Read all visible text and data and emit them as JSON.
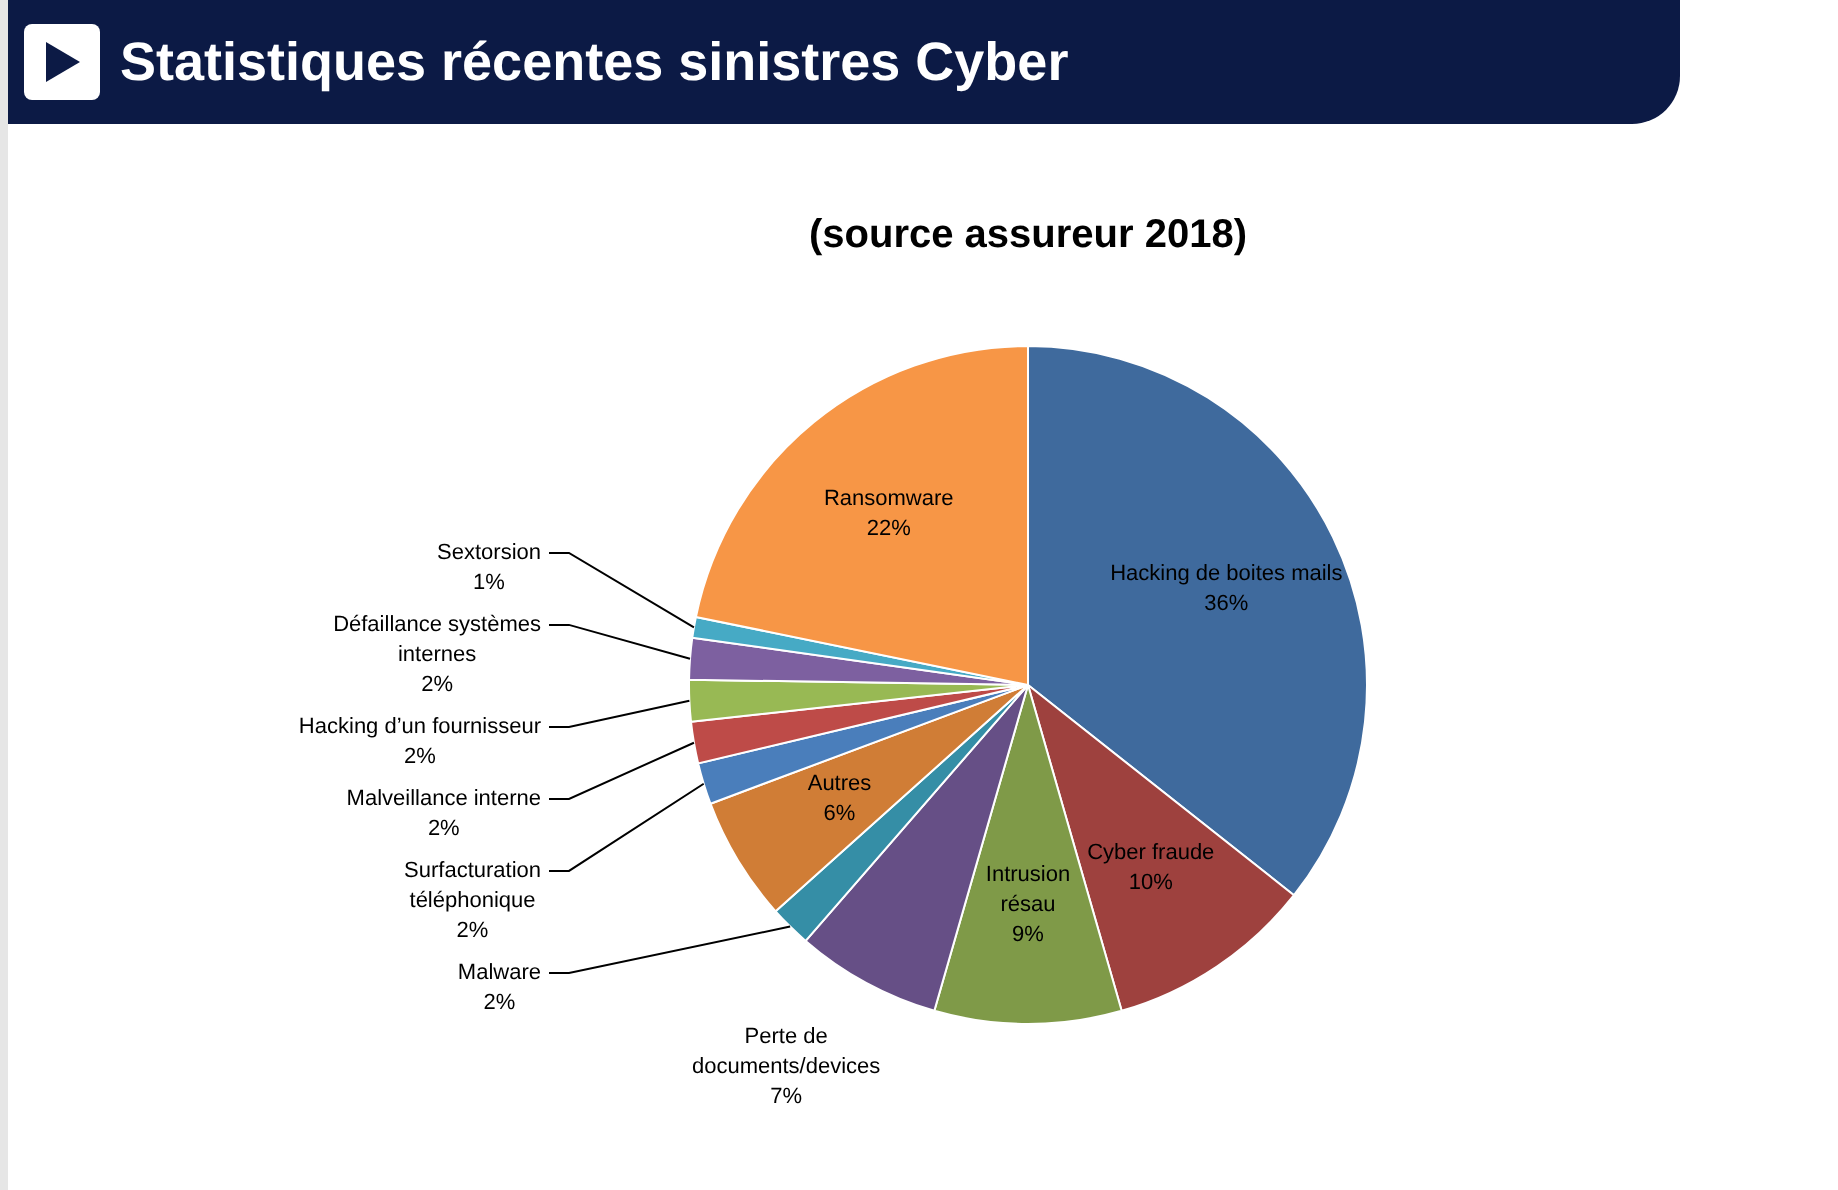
{
  "chart_data": {
    "type": "pie",
    "title": "Statistiques récentes sinistres Cyber",
    "subtitle": "(source assureur 2018)",
    "categories": [
      "Hacking de boites mails",
      "Cyber fraude",
      "Intrusion résau",
      "Perte de documents/devices",
      "Malware",
      "Autres",
      "Surfacturation téléphonique",
      "Malveillance interne",
      "Hacking d’un fournisseur",
      "Défaillance systèmes internes",
      "Sextorsion",
      "Ransomware"
    ],
    "values": [
      36,
      10,
      9,
      7,
      2,
      6,
      2,
      2,
      2,
      2,
      1,
      22
    ],
    "value_labels": [
      "36%",
      "10%",
      "9%",
      "7%",
      "2%",
      "6%",
      "2%",
      "2%",
      "2%",
      "2%",
      "1%",
      "22%"
    ],
    "colors": [
      "#3f6a9d",
      "#9e413e",
      "#7f9a48",
      "#664f86",
      "#358ea6",
      "#d07d36",
      "#4a7ebb",
      "#be4b48",
      "#98b954",
      "#7d60a0",
      "#46aac5",
      "#f79646"
    ],
    "legend": false
  }
}
